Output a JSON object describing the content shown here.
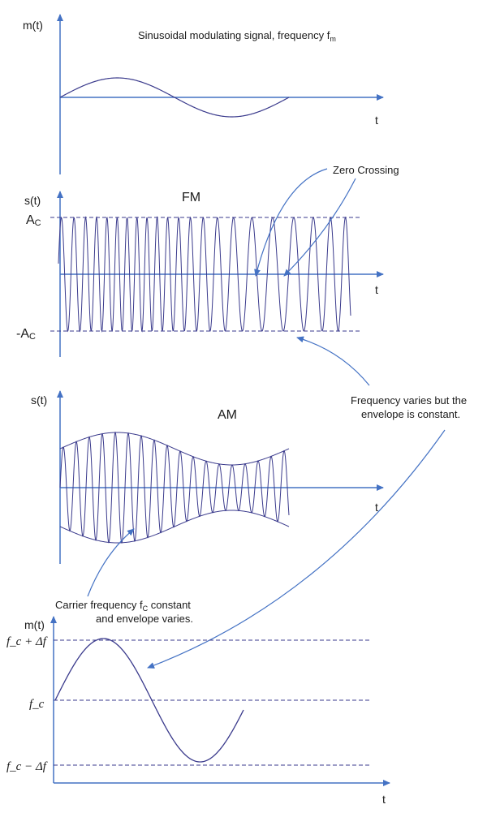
{
  "colors": {
    "axis": "#4472c4",
    "wave": "#3a3a8c",
    "text": "#1a1a1a"
  },
  "panel1": {
    "ylabel": "m(t)",
    "xlabel": "t",
    "caption": "Sinusoidal modulating signal, frequency f",
    "caption_sub": "m"
  },
  "panel2": {
    "ylabel": "s(t)",
    "xlabel": "t",
    "title": "FM",
    "pos_level": "A",
    "pos_level_sub": "C",
    "neg_level": "-A",
    "neg_level_sub": "C",
    "annotation_zero": "Zero Crossing"
  },
  "panel3": {
    "ylabel": "s(t)",
    "xlabel": "t",
    "title": "AM"
  },
  "annotation_freq": {
    "line1": "Frequency varies but the",
    "line2": "envelope is constant."
  },
  "annotation_carrier": {
    "line1_a": "Carrier frequency f",
    "line1_sub": "C",
    "line1_b": " constant",
    "line2": "and envelope varies."
  },
  "panel4": {
    "ylabel": "m(t)",
    "xlabel": "t",
    "top_level": "f_c + Δf",
    "mid_level": "f_c",
    "bottom_level": "f_c − Δf"
  }
}
